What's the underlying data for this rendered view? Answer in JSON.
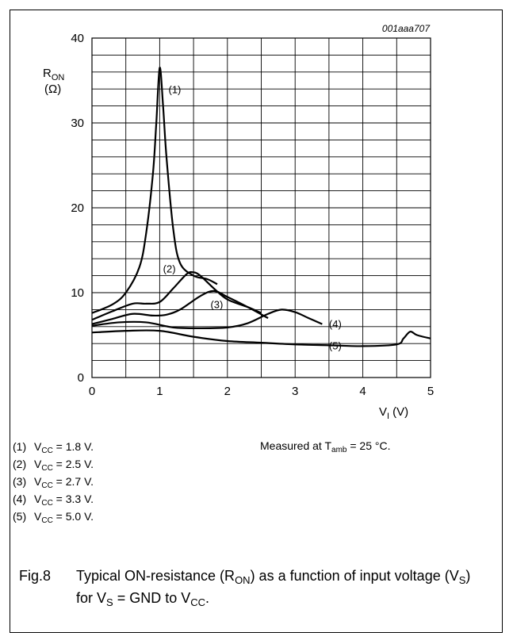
{
  "figure_id": "001aaa707",
  "chart_data": {
    "type": "line",
    "xlabel": "V",
    "xlabel_sub": "I",
    "xlabel_unit": "(V)",
    "ylabel": "R",
    "ylabel_sub": "ON",
    "ylabel_unit": "(Ω)",
    "xlim": [
      0,
      5
    ],
    "ylim": [
      0,
      40
    ],
    "x_ticks": [
      0,
      1,
      2,
      3,
      4,
      5
    ],
    "y_ticks": [
      0,
      10,
      20,
      30,
      40
    ],
    "grid": true,
    "series": [
      {
        "name": "(1)",
        "x": [
          0.0,
          0.3,
          0.5,
          0.7,
          0.8,
          0.9,
          0.95,
          1.0,
          1.05,
          1.1,
          1.2,
          1.3,
          1.5,
          1.7,
          1.85
        ],
        "y": [
          7.6,
          8.6,
          10.0,
          13.0,
          17.0,
          24.0,
          30.0,
          36.5,
          32.0,
          26.0,
          17.5,
          13.5,
          12.0,
          11.6,
          11.0
        ]
      },
      {
        "name": "(2)",
        "x": [
          0.0,
          0.3,
          0.6,
          0.8,
          1.0,
          1.2,
          1.4,
          1.5,
          1.6,
          1.8,
          2.0,
          2.3,
          2.5
        ],
        "y": [
          6.8,
          7.8,
          8.7,
          8.7,
          8.9,
          10.5,
          12.2,
          12.4,
          12.0,
          10.5,
          9.2,
          8.3,
          7.6
        ]
      },
      {
        "name": "(3)",
        "x": [
          0.0,
          0.3,
          0.6,
          0.9,
          1.1,
          1.3,
          1.6,
          1.8,
          2.0,
          2.3,
          2.6
        ],
        "y": [
          6.3,
          6.9,
          7.5,
          7.3,
          7.4,
          8.0,
          9.6,
          10.2,
          9.5,
          8.3,
          7.0
        ]
      },
      {
        "name": "(4)",
        "x": [
          0.0,
          0.4,
          0.8,
          1.2,
          1.6,
          2.0,
          2.3,
          2.6,
          2.8,
          3.0,
          3.2,
          3.4
        ],
        "y": [
          6.1,
          6.5,
          6.5,
          5.9,
          5.8,
          5.9,
          6.4,
          7.5,
          8.0,
          7.7,
          7.0,
          6.3
        ]
      },
      {
        "name": "(5)",
        "x": [
          0.0,
          0.5,
          1.0,
          1.5,
          2.0,
          2.5,
          3.0,
          3.5,
          4.0,
          4.5,
          4.6,
          4.7,
          4.8,
          5.0
        ],
        "y": [
          5.3,
          5.5,
          5.5,
          4.8,
          4.3,
          4.1,
          3.9,
          3.8,
          3.7,
          3.9,
          4.6,
          5.4,
          5.0,
          4.6
        ]
      }
    ],
    "series_label_positions": [
      {
        "label": "(1)",
        "x": 1.13,
        "y": 33.5
      },
      {
        "label": "(2)",
        "x": 1.05,
        "y": 12.4
      },
      {
        "label": "(3)",
        "x": 1.75,
        "y": 8.2
      },
      {
        "label": "(4)",
        "x": 3.5,
        "y": 5.9
      },
      {
        "label": "(5)",
        "x": 3.5,
        "y": 3.3
      }
    ]
  },
  "legend": [
    {
      "num": "(1)",
      "label": "V",
      "sub": "CC",
      "value": "= 1.8 V."
    },
    {
      "num": "(2)",
      "label": "V",
      "sub": "CC",
      "value": "= 2.5 V."
    },
    {
      "num": "(3)",
      "label": "V",
      "sub": "CC",
      "value": "= 2.7 V."
    },
    {
      "num": "(4)",
      "label": "V",
      "sub": "CC",
      "value": "= 3.3 V."
    },
    {
      "num": "(5)",
      "label": "V",
      "sub": "CC",
      "value": "= 5.0 V."
    }
  ],
  "note": {
    "prefix": "Measured at T",
    "sub": "amb",
    "suffix": " = 25 °C."
  },
  "caption": {
    "fig": "Fig.8",
    "part1": "Typical ON-resistance (R",
    "sub1": "ON",
    "part2": ") as a function of input voltage (V",
    "sub2": "S",
    "part3": ") for V",
    "sub3": "S",
    "part4": " = GND to V",
    "sub4": "CC",
    "part5": "."
  }
}
